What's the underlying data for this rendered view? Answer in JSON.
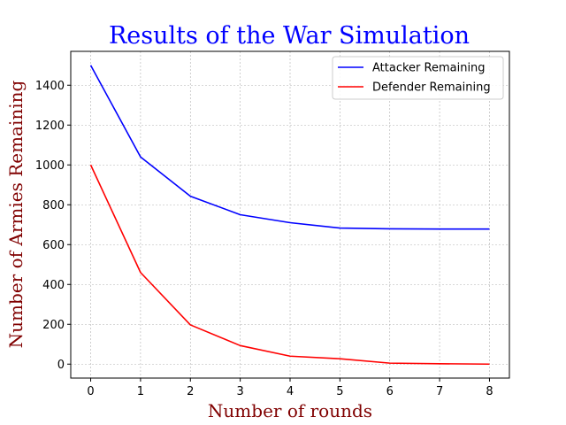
{
  "chart_data": {
    "type": "line",
    "title": "Results of the War Simulation",
    "xlabel": "Number of rounds",
    "ylabel": "Number of Armies Remaining",
    "x": [
      0,
      1,
      2,
      3,
      4,
      5,
      6,
      7,
      8
    ],
    "xlim": [
      -0.4,
      8.4
    ],
    "ylim": [
      -70,
      1570
    ],
    "xticks": [
      0,
      1,
      2,
      3,
      4,
      5,
      6,
      7,
      8
    ],
    "yticks": [
      0,
      200,
      400,
      600,
      800,
      1000,
      1200,
      1400
    ],
    "grid": true,
    "legend_position": "top-right",
    "series": [
      {
        "name": "Attacker Remaining",
        "color": "#0000ff",
        "values": [
          1500,
          1040,
          843,
          750,
          710,
          683,
          679,
          678,
          678
        ]
      },
      {
        "name": "Defender Remaining",
        "color": "#ff0000",
        "values": [
          1000,
          460,
          197,
          93,
          40,
          27,
          5,
          2,
          0
        ]
      }
    ]
  }
}
